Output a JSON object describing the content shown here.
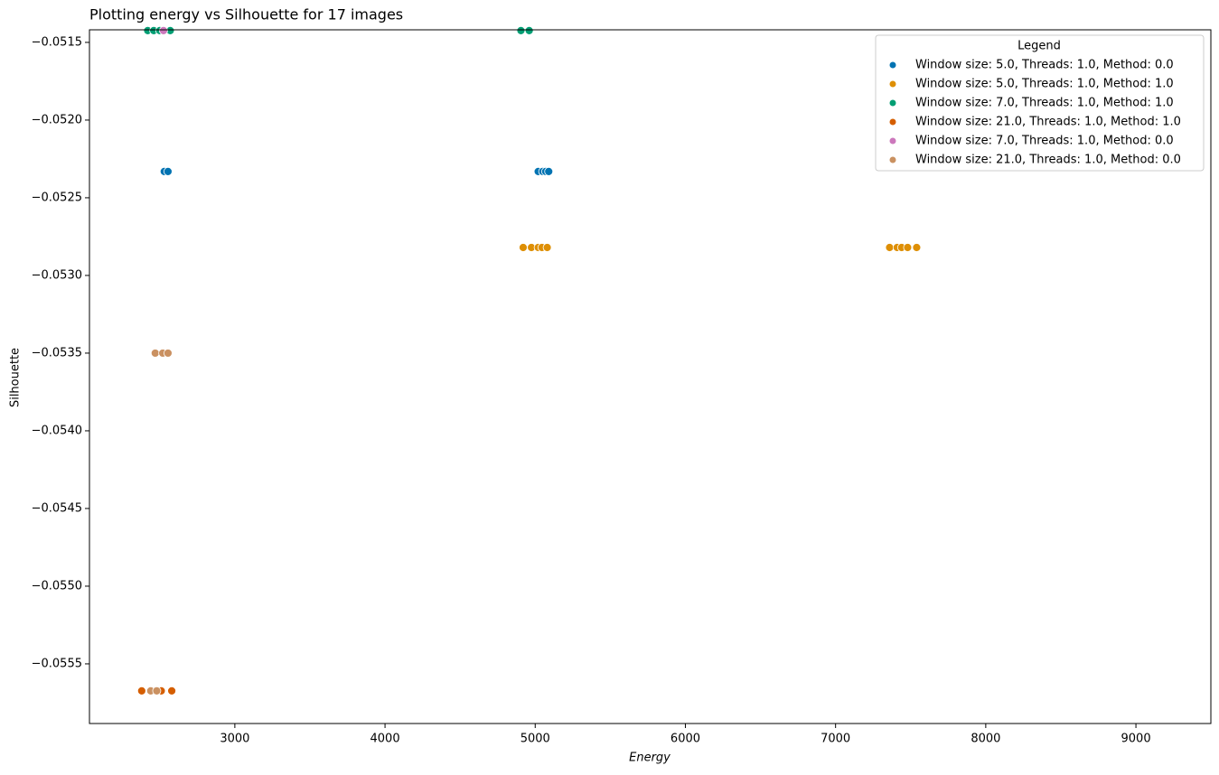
{
  "chart_data": {
    "type": "scatter",
    "title": "Plotting energy vs Silhouette for 17 images",
    "x_label": "Energy",
    "y_label": "Silhouette",
    "legend_title": "Legend",
    "legend_position": "upper right",
    "xlim": [
      2032,
      9499
    ],
    "xticks": [
      3000,
      4000,
      5000,
      6000,
      7000,
      8000,
      9000
    ],
    "ylim": [
      -0.055884,
      -0.051419
    ],
    "yticks": [
      {
        "value": -0.0515,
        "label": "−0.0515"
      },
      {
        "value": -0.052,
        "label": "−0.0520"
      },
      {
        "value": -0.0525,
        "label": "−0.0525"
      },
      {
        "value": -0.053,
        "label": "−0.0530"
      },
      {
        "value": -0.0535,
        "label": "−0.0535"
      },
      {
        "value": -0.054,
        "label": "−0.0540"
      },
      {
        "value": -0.0545,
        "label": "−0.0545"
      },
      {
        "value": -0.055,
        "label": "−0.0550"
      },
      {
        "value": -0.0555,
        "label": "−0.0555"
      }
    ],
    "series": [
      {
        "name": "Window size: 5.0, Threads: 1.0, Method: 0.0",
        "color": "#0173b2",
        "x": [
          2530,
          2555,
          5020,
          5050,
          5070,
          5090
        ],
        "values": [
          -0.052331,
          -0.052331,
          -0.052331,
          -0.052331,
          -0.052331,
          -0.052331
        ]
      },
      {
        "name": "Window size: 5.0, Threads: 1.0, Method: 1.0",
        "color": "#de8f05",
        "x": [
          4920,
          4975,
          5020,
          5045,
          5080,
          7360,
          7410,
          7440,
          7480,
          7540
        ],
        "values": [
          -0.05282,
          -0.05282,
          -0.05282,
          -0.05282,
          -0.05282,
          -0.05282,
          -0.05282,
          -0.05282,
          -0.05282,
          -0.05282
        ]
      },
      {
        "name": "Window size: 7.0, Threads: 1.0, Method: 1.0",
        "color": "#029e73",
        "x": [
          2420,
          2460,
          2500,
          2570,
          4905,
          4960
        ],
        "values": [
          -0.051424,
          -0.051424,
          -0.051424,
          -0.051424,
          -0.051424,
          -0.051424
        ]
      },
      {
        "name": "Window size: 21.0, Threads: 1.0, Method: 1.0",
        "color": "#d55e00",
        "x": [
          2380,
          2470,
          2510,
          2580
        ],
        "values": [
          -0.055674,
          -0.055674,
          -0.055674,
          -0.055674
        ]
      },
      {
        "name": "Window size: 7.0, Threads: 1.0, Method: 0.0",
        "color": "#cc78bc",
        "x": [
          2525
        ],
        "values": [
          -0.051424
        ]
      },
      {
        "name": "Window size: 21.0, Threads: 1.0, Method: 0.0",
        "color": "#ca9161",
        "x": [
          2470,
          2520,
          2555,
          2440,
          2480
        ],
        "values": [
          -0.0535,
          -0.0535,
          -0.0535,
          -0.055674,
          -0.055674
        ]
      }
    ]
  }
}
